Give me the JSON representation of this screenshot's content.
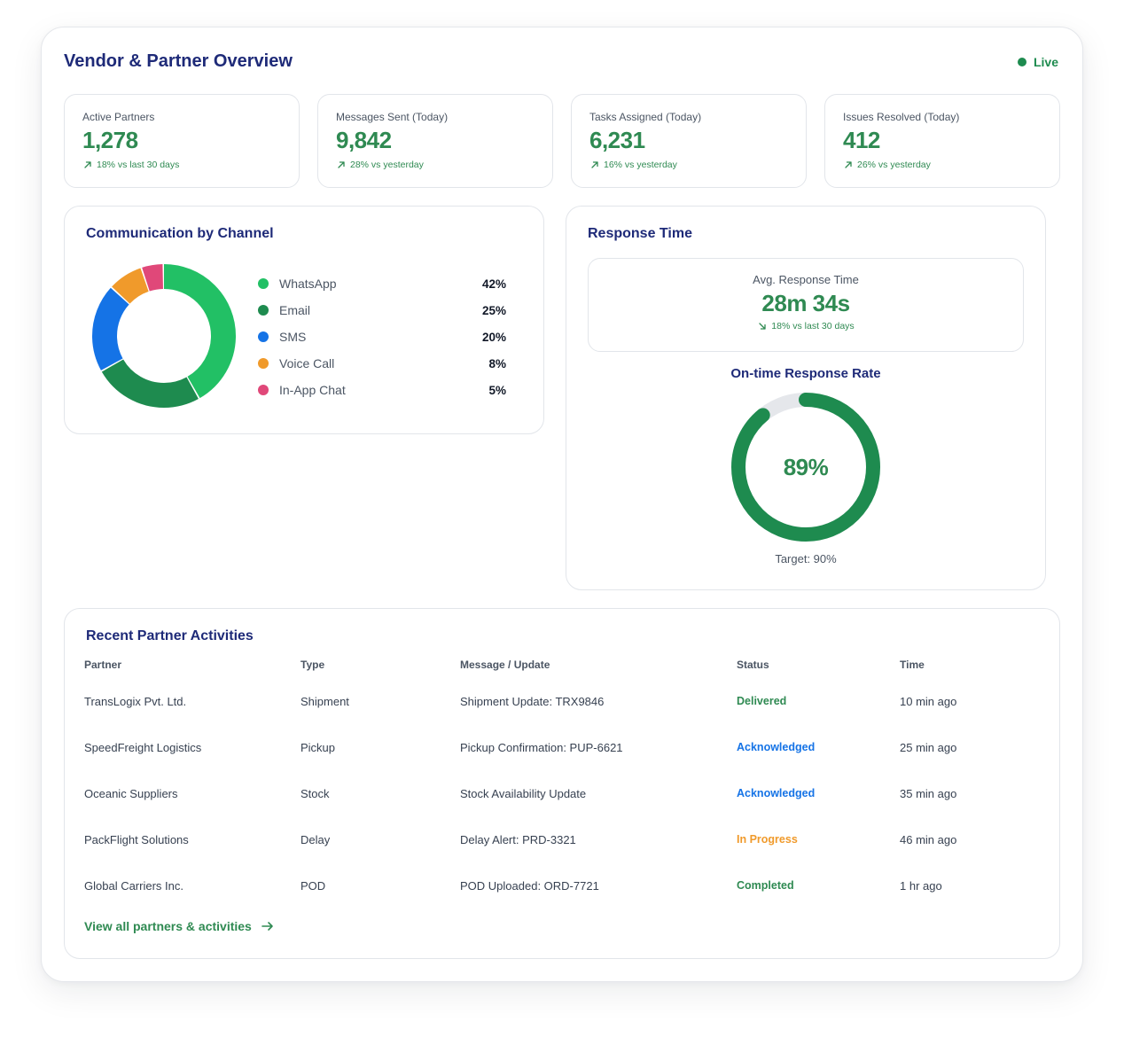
{
  "header": {
    "title": "Vendor & Partner Overview",
    "live_label": "Live",
    "live_color": "#1e8b4f"
  },
  "stats": [
    {
      "label": "Active Partners",
      "value": "1,278",
      "delta": "18% vs last 30 days",
      "icon": "arrow-up-right-icon"
    },
    {
      "label": "Messages Sent (Today)",
      "value": "9,842",
      "delta": "28% vs yesterday",
      "icon": "arrow-up-right-icon"
    },
    {
      "label": "Tasks Assigned (Today)",
      "value": "6,231",
      "delta": "16% vs yesterday",
      "icon": "arrow-up-right-icon"
    },
    {
      "label": "Issues Resolved (Today)",
      "value": "412",
      "delta": "26% vs yesterday",
      "icon": "arrow-up-right-icon"
    }
  ],
  "channels": {
    "title": "Communication by Channel",
    "items": [
      {
        "name": "WhatsApp",
        "value": "42%",
        "pct": 42,
        "color": "#22c065"
      },
      {
        "name": "Email",
        "value": "25%",
        "pct": 25,
        "color": "#1e8b4f"
      },
      {
        "name": "SMS",
        "value": "20%",
        "pct": 20,
        "color": "#1573e6"
      },
      {
        "name": "Voice Call",
        "value": "8%",
        "pct": 8,
        "color": "#f09a2b"
      },
      {
        "name": "In-App Chat",
        "value": "5%",
        "pct": 5,
        "color": "#e04879"
      }
    ]
  },
  "response": {
    "title": "Response Time",
    "avg_label": "Avg. Response Time",
    "avg_value": "28m 34s",
    "avg_delta": "18% vs last 30 days",
    "avg_delta_icon": "arrow-down-right-icon",
    "rate_title": "On-time Response Rate",
    "rate_value": "89%",
    "rate_fraction": 0.89,
    "rate_target": "Target: 90%"
  },
  "activities": {
    "title": "Recent Partner Activities",
    "columns": [
      "Partner",
      "Type",
      "Message / Update",
      "Status",
      "Time"
    ],
    "rows": [
      {
        "partner": "TransLogix Pvt. Ltd.",
        "type": "Shipment",
        "message": "Shipment Update: TRX9846",
        "status": "Delivered",
        "status_color": "#2f8a52",
        "time": "10 min ago"
      },
      {
        "partner": "SpeedFreight Logistics",
        "type": "Pickup",
        "message": "Pickup Confirmation: PUP-6621",
        "status": "Acknowledged",
        "status_color": "#1573e6",
        "time": "25 min ago"
      },
      {
        "partner": "Oceanic Suppliers",
        "type": "Stock",
        "message": "Stock Availability Update",
        "status": "Acknowledged",
        "status_color": "#1573e6",
        "time": "35 min ago"
      },
      {
        "partner": "PackFlight Solutions",
        "type": "Delay",
        "message": "Delay Alert: PRD-3321",
        "status": "In Progress",
        "status_color": "#f09a2b",
        "time": "46 min ago"
      },
      {
        "partner": "Global Carriers Inc.",
        "type": "POD",
        "message": "POD Uploaded: ORD-7721",
        "status": "Completed",
        "status_color": "#2f8a52",
        "time": "1 hr ago"
      }
    ],
    "view_all": "View all partners & activities"
  }
}
